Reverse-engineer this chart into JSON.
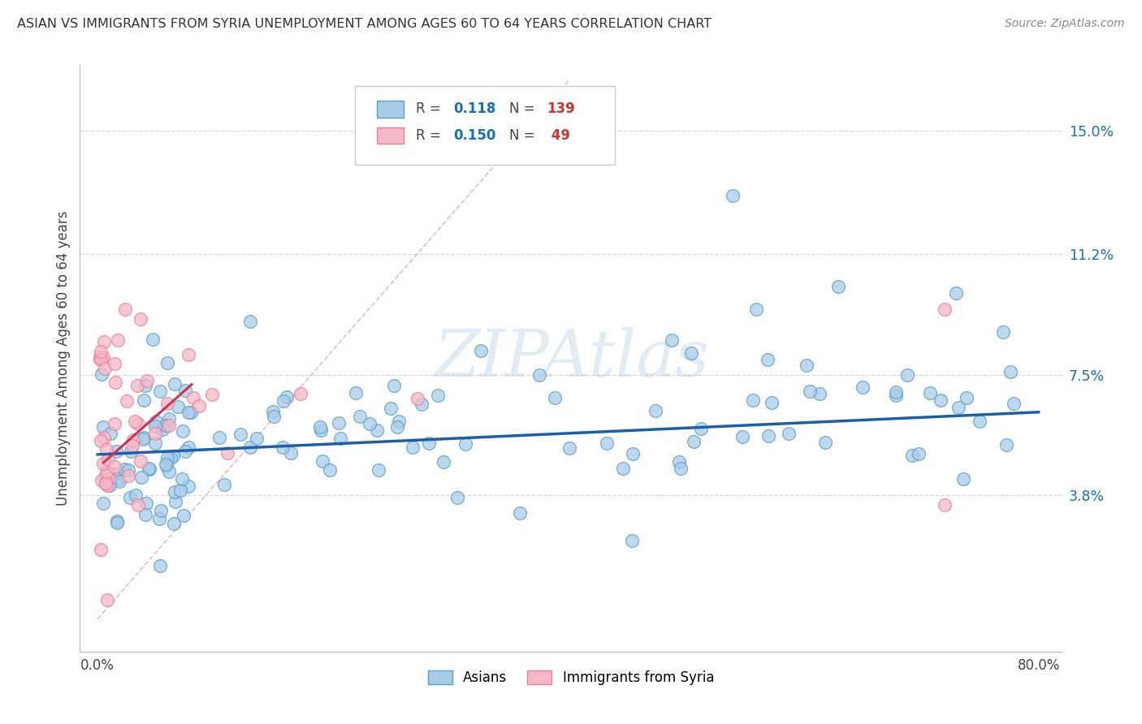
{
  "title": "ASIAN VS IMMIGRANTS FROM SYRIA UNEMPLOYMENT AMONG AGES 60 TO 64 YEARS CORRELATION CHART",
  "source": "Source: ZipAtlas.com",
  "ylabel": "Unemployment Among Ages 60 to 64 years",
  "xlim": [
    0.0,
    80.0
  ],
  "ylim": [
    0.0,
    16.5
  ],
  "xticks": [
    0.0,
    80.0
  ],
  "xticklabels": [
    "0.0%",
    "80.0%"
  ],
  "yticks_right": [
    3.8,
    7.5,
    11.2,
    15.0
  ],
  "ytick_labels_right": [
    "3.8%",
    "7.5%",
    "11.2%",
    "15.0%"
  ],
  "legend_labels": [
    "Asians",
    "Immigrants from Syria"
  ],
  "legend_r": [
    0.118,
    0.15
  ],
  "legend_n": [
    139,
    49
  ],
  "blue_scatter_color": "#a8cce8",
  "pink_scatter_color": "#f5b8c8",
  "blue_edge_color": "#5b9ec9",
  "pink_edge_color": "#e8809a",
  "blue_line_color": "#1a5fa8",
  "pink_line_color": "#cc3355",
  "diag_line_color": "#dda0aa",
  "watermark": "ZIPAtlas",
  "legend_r_color": "#1a6faf",
  "legend_n_color": "#cc3333",
  "grid_color": "#d8d8d8",
  "blue_trend_start_x": 0.0,
  "blue_trend_start_y": 5.05,
  "blue_trend_end_x": 80.0,
  "blue_trend_end_y": 6.35,
  "pink_trend_start_x": 0.5,
  "pink_trend_start_y": 4.8,
  "pink_trend_end_x": 8.0,
  "pink_trend_end_y": 7.2,
  "diag_start_x": 0.0,
  "diag_start_y": 0.0,
  "diag_end_x": 40.0,
  "diag_end_y": 16.5
}
